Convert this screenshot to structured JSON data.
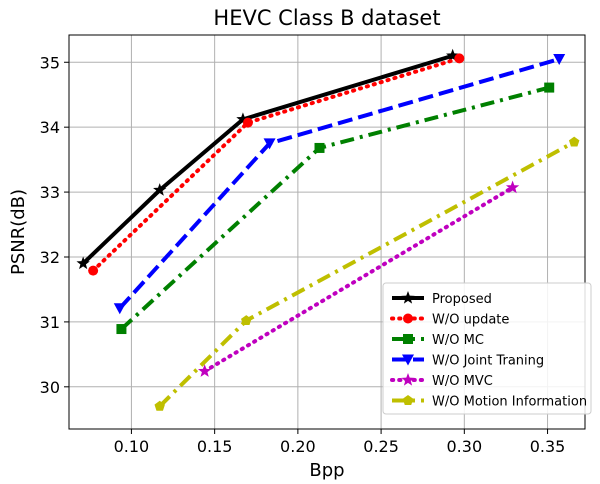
{
  "chart_data": {
    "type": "line",
    "title": "HEVC Class B dataset",
    "xlabel": "Bpp",
    "ylabel": "PSNR(dB)",
    "xlim": [
      0.0625,
      0.3725
    ],
    "ylim": [
      29.35,
      35.42
    ],
    "xticks": [
      0.1,
      0.15,
      0.2,
      0.25,
      0.3,
      0.35
    ],
    "xtick_labels": [
      "0.10",
      "0.15",
      "0.20",
      "0.25",
      "0.30",
      "0.35"
    ],
    "yticks": [
      30,
      31,
      32,
      33,
      34,
      35
    ],
    "ytick_labels": [
      "30",
      "31",
      "32",
      "33",
      "34",
      "35"
    ],
    "grid": true,
    "legend_position": "lower-right",
    "series": [
      {
        "name": "Proposed",
        "color": "#000000",
        "dash": "solid",
        "marker": "star",
        "x": [
          0.071,
          0.117,
          0.167,
          0.293
        ],
        "y": [
          31.9,
          33.03,
          34.12,
          35.1
        ]
      },
      {
        "name": "W/O update",
        "color": "#ff0000",
        "dash": "dotted",
        "marker": "circle",
        "x": [
          0.077,
          0.17,
          0.297
        ],
        "y": [
          31.79,
          34.07,
          35.06
        ]
      },
      {
        "name": "W/O MC",
        "color": "#008000",
        "dash": "dashdot",
        "marker": "square",
        "x": [
          0.094,
          0.213,
          0.351
        ],
        "y": [
          30.89,
          33.68,
          34.61
        ]
      },
      {
        "name": "W/O Joint Traning",
        "color": "#0000ff",
        "dash": "dashed",
        "marker": "triangle-down",
        "x": [
          0.093,
          0.183,
          0.357
        ],
        "y": [
          31.21,
          33.75,
          35.05
        ]
      },
      {
        "name": "W/O MVC",
        "color": "#bf00bf",
        "dash": "dotted",
        "marker": "star",
        "x": [
          0.144,
          0.329
        ],
        "y": [
          30.24,
          33.07
        ]
      },
      {
        "name": "W/O Motion Information",
        "color": "#bfbf00",
        "dash": "dashdot",
        "marker": "pentagon",
        "x": [
          0.117,
          0.169,
          0.366
        ],
        "y": [
          29.7,
          31.02,
          33.77
        ]
      }
    ]
  }
}
